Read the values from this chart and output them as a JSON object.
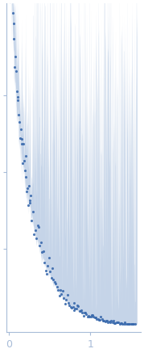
{
  "title": "",
  "xlabel": "",
  "ylabel": "",
  "xlim": [
    -0.03,
    1.62
  ],
  "ylim": [
    -0.02,
    1.05
  ],
  "x_ticks": [
    0,
    1
  ],
  "x_tick_labels": [
    "0",
    "1"
  ],
  "dot_color": "#3a6aad",
  "shade_color": "#c5d4e8",
  "line_color": "#a8bcd8",
  "background_color": "#ffffff",
  "figsize": [
    1.79,
    4.37
  ],
  "dpi": 100
}
